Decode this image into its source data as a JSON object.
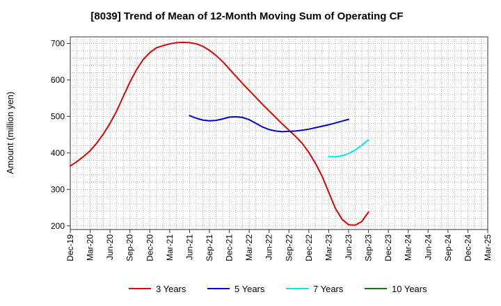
{
  "chart_data": {
    "type": "line",
    "title": "[8039]  Trend of Mean of 12-Month Moving Sum of Operating CF",
    "xlabel": "",
    "ylabel": "Amount (million yen)",
    "ylim": [
      190,
      718
    ],
    "yticks": [
      200,
      300,
      400,
      500,
      600,
      700
    ],
    "xlim": [
      0,
      63
    ],
    "xticks": [
      {
        "label": "Dec-19",
        "x": 0
      },
      {
        "label": "Mar-20",
        "x": 3
      },
      {
        "label": "Jun-20",
        "x": 6
      },
      {
        "label": "Sep-20",
        "x": 9
      },
      {
        "label": "Dec-20",
        "x": 12
      },
      {
        "label": "Mar-21",
        "x": 15
      },
      {
        "label": "Jun-21",
        "x": 18
      },
      {
        "label": "Sep-21",
        "x": 21
      },
      {
        "label": "Dec-21",
        "x": 24
      },
      {
        "label": "Mar-22",
        "x": 27
      },
      {
        "label": "Jun-22",
        "x": 30
      },
      {
        "label": "Sep-22",
        "x": 33
      },
      {
        "label": "Dec-22",
        "x": 36
      },
      {
        "label": "Mar-23",
        "x": 39
      },
      {
        "label": "Jun-23",
        "x": 42
      },
      {
        "label": "Sep-23",
        "x": 45
      },
      {
        "label": "Dec-23",
        "x": 48
      },
      {
        "label": "Mar-24",
        "x": 51
      },
      {
        "label": "Jun-24",
        "x": 54
      },
      {
        "label": "Sep-24",
        "x": 57
      },
      {
        "label": "Dec-24",
        "x": 60
      },
      {
        "label": "Mar-25",
        "x": 63
      }
    ],
    "grid": true,
    "legend_position": "bottom",
    "series": [
      {
        "name": "3 Years",
        "color": "#e00000",
        "points": [
          [
            0,
            364
          ],
          [
            1,
            376
          ],
          [
            2,
            390
          ],
          [
            3,
            406
          ],
          [
            4,
            427
          ],
          [
            5,
            452
          ],
          [
            6,
            481
          ],
          [
            7,
            515
          ],
          [
            8,
            555
          ],
          [
            9,
            594
          ],
          [
            10,
            628
          ],
          [
            11,
            656
          ],
          [
            12,
            675
          ],
          [
            13,
            688
          ],
          [
            14,
            694
          ],
          [
            15,
            699
          ],
          [
            16,
            702
          ],
          [
            17,
            703
          ],
          [
            18,
            702
          ],
          [
            19,
            699
          ],
          [
            20,
            692
          ],
          [
            21,
            681
          ],
          [
            22,
            667
          ],
          [
            23,
            650
          ],
          [
            24,
            630
          ],
          [
            25,
            610
          ],
          [
            26,
            590
          ],
          [
            27,
            571
          ],
          [
            28,
            552
          ],
          [
            29,
            533
          ],
          [
            30,
            515
          ],
          [
            31,
            497
          ],
          [
            32,
            479
          ],
          [
            33,
            462
          ],
          [
            34,
            445
          ],
          [
            35,
            426
          ],
          [
            36,
            401
          ],
          [
            37,
            371
          ],
          [
            38,
            336
          ],
          [
            39,
            292
          ],
          [
            40,
            248
          ],
          [
            41,
            218
          ],
          [
            42,
            203
          ],
          [
            43,
            202
          ],
          [
            44,
            212
          ],
          [
            45,
            238
          ]
        ]
      },
      {
        "name": "5 Years",
        "color": "#0000cc",
        "points": [
          [
            18,
            502
          ],
          [
            19,
            495
          ],
          [
            20,
            490
          ],
          [
            21,
            488
          ],
          [
            22,
            489
          ],
          [
            23,
            493
          ],
          [
            24,
            498
          ],
          [
            25,
            499
          ],
          [
            26,
            497
          ],
          [
            27,
            491
          ],
          [
            28,
            481
          ],
          [
            29,
            471
          ],
          [
            30,
            464
          ],
          [
            31,
            460
          ],
          [
            32,
            458
          ],
          [
            33,
            459
          ],
          [
            34,
            460
          ],
          [
            35,
            462
          ],
          [
            36,
            465
          ],
          [
            37,
            469
          ],
          [
            38,
            473
          ],
          [
            39,
            477
          ],
          [
            40,
            482
          ],
          [
            41,
            487
          ],
          [
            42,
            492
          ]
        ]
      },
      {
        "name": "7 Years",
        "color": "#00e5ee",
        "points": [
          [
            39,
            390
          ],
          [
            40,
            389
          ],
          [
            41,
            392
          ],
          [
            42,
            398
          ],
          [
            43,
            408
          ],
          [
            44,
            421
          ],
          [
            45,
            436
          ]
        ]
      },
      {
        "name": "10 Years",
        "color": "#008000",
        "points": []
      }
    ]
  }
}
